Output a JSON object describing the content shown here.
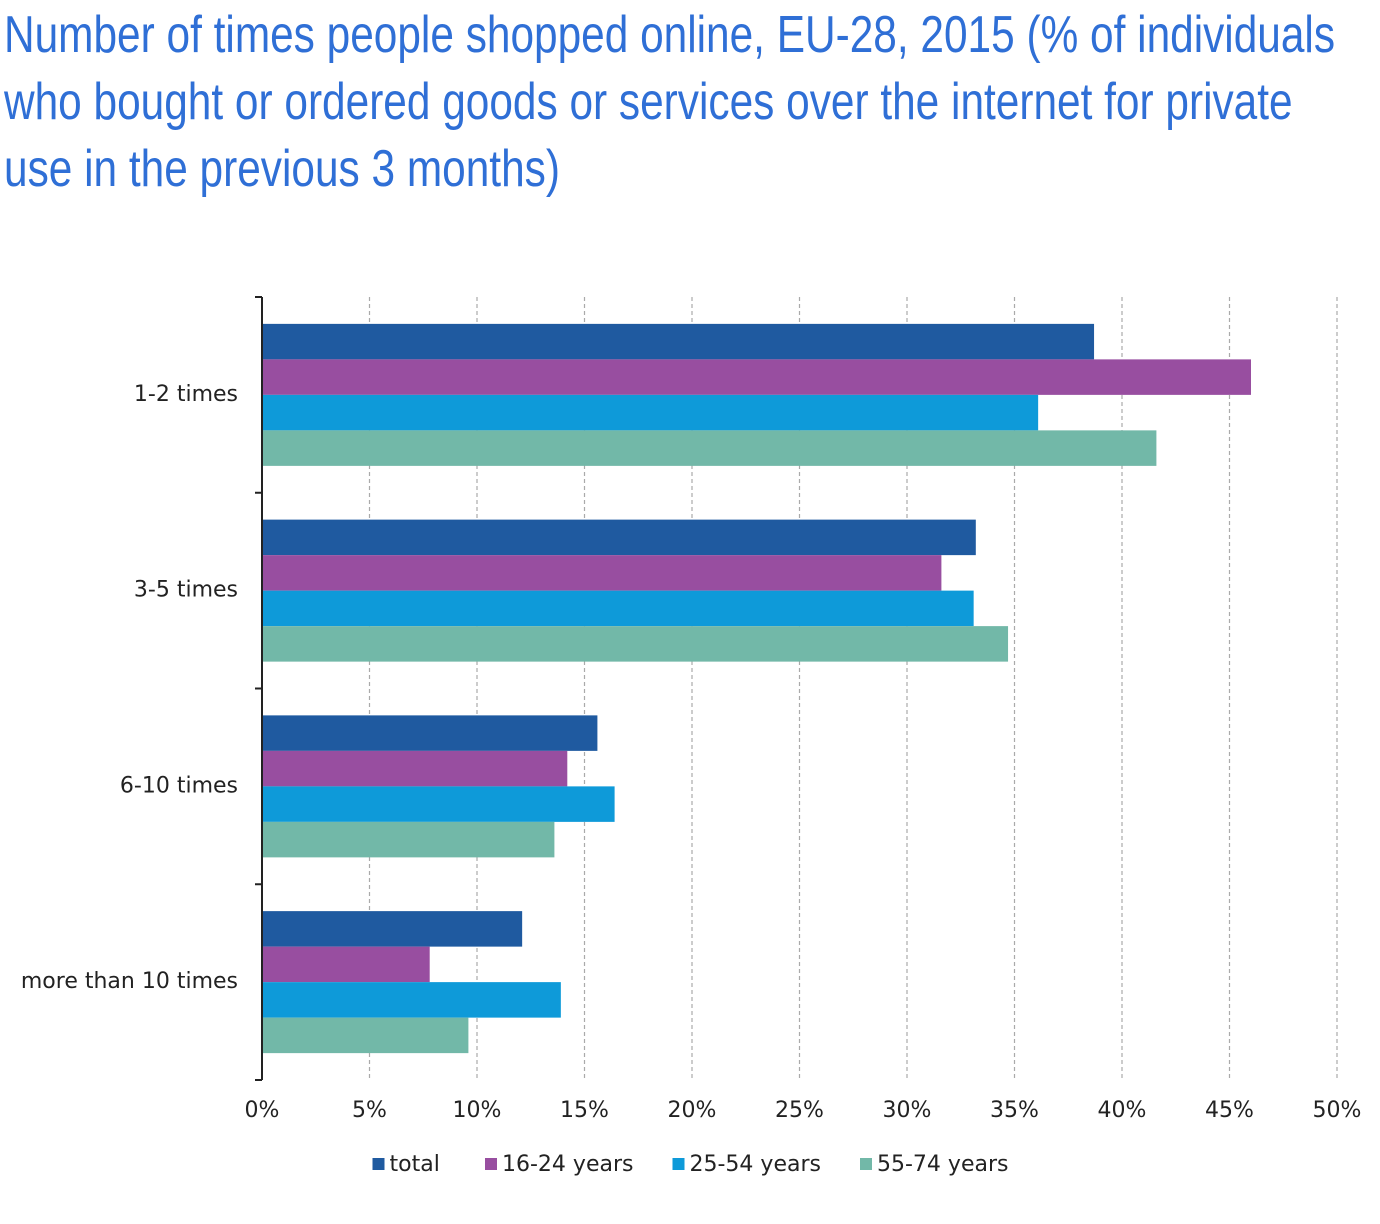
{
  "chart_data": {
    "type": "hbar",
    "title": "Number of times people shopped online, EU-28, 2015 (% of individuals who bought or ordered goods or services over the internet for private use in the previous 3 months)",
    "categories": [
      "1-2 times",
      "3-5 times",
      "6-10 times",
      "more than 10 times"
    ],
    "series": [
      {
        "name": "total",
        "color": "#1f5aa0",
        "values": [
          38.7,
          33.2,
          15.6,
          12.1
        ]
      },
      {
        "name": "16-24 years",
        "color": "#984ea0",
        "values": [
          46.0,
          31.6,
          14.2,
          7.8
        ]
      },
      {
        "name": "25-54 years",
        "color": "#0e9ad9",
        "values": [
          36.1,
          33.1,
          16.4,
          13.9
        ]
      },
      {
        "name": "55-74 years",
        "color": "#72b8a8",
        "values": [
          41.6,
          34.7,
          13.6,
          9.6
        ]
      }
    ],
    "xlim": [
      0,
      50
    ],
    "xticks": [
      {
        "value": 0,
        "label": "0%"
      },
      {
        "value": 5,
        "label": "5%"
      },
      {
        "value": 10,
        "label": "10%"
      },
      {
        "value": 15,
        "label": "15%"
      },
      {
        "value": 20,
        "label": "20%"
      },
      {
        "value": 25,
        "label": "25%"
      },
      {
        "value": 30,
        "label": "30%"
      },
      {
        "value": 35,
        "label": "35%"
      },
      {
        "value": 40,
        "label": "40%"
      },
      {
        "value": 45,
        "label": "45%"
      },
      {
        "value": 50,
        "label": "50%"
      }
    ],
    "grid": true,
    "legend": "bottom"
  }
}
